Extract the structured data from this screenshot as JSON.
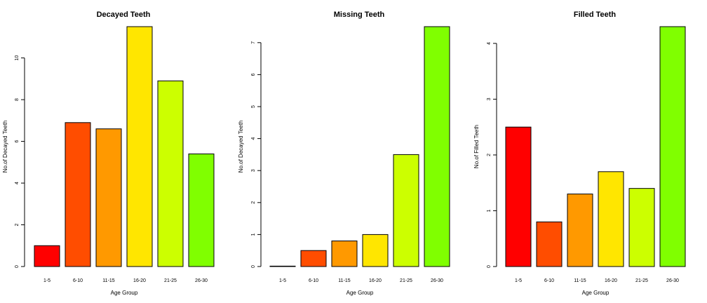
{
  "chart_data": [
    {
      "type": "bar",
      "title": "Decayed Teeth",
      "xlabel": "Age Group",
      "ylabel": "No.of Decayed Teeth",
      "categories": [
        "1-5",
        "6-10",
        "11-15",
        "16-20",
        "21-25",
        "26-30"
      ],
      "values": [
        1.0,
        6.9,
        6.6,
        11.5,
        8.9,
        5.4
      ],
      "colors": [
        "#FF0000",
        "#FF4D00",
        "#FF9900",
        "#FFE600",
        "#CCFF00",
        "#80FF00"
      ],
      "ylim": [
        0,
        11.5
      ],
      "yticks": [
        0,
        2,
        4,
        6,
        8,
        10
      ]
    },
    {
      "type": "bar",
      "title": "Missing Teeth",
      "xlabel": "Age Group",
      "ylabel": "No.of Decayed Teeth",
      "categories": [
        "1-5",
        "6-10",
        "11-15",
        "16-20",
        "21-25",
        "26-30"
      ],
      "values": [
        0.0,
        0.5,
        0.8,
        1.0,
        3.5,
        7.5
      ],
      "colors": [
        "#FF0000",
        "#FF4D00",
        "#FF9900",
        "#FFE600",
        "#CCFF00",
        "#80FF00"
      ],
      "ylim": [
        0,
        7.5
      ],
      "yticks": [
        0,
        1,
        2,
        3,
        4,
        5,
        6,
        7
      ]
    },
    {
      "type": "bar",
      "title": "Filled Teeth",
      "xlabel": "Age Group",
      "ylabel": "No.of Filled Teeth",
      "categories": [
        "1-5",
        "6-10",
        "11-15",
        "16-20",
        "21-25",
        "26-30"
      ],
      "values": [
        2.5,
        0.8,
        1.3,
        1.7,
        1.4,
        4.3
      ],
      "colors": [
        "#FF0000",
        "#FF4D00",
        "#FF9900",
        "#FFE600",
        "#CCFF00",
        "#80FF00"
      ],
      "ylim": [
        0,
        4.3
      ],
      "yticks": [
        0,
        1,
        2,
        3,
        4
      ]
    }
  ]
}
